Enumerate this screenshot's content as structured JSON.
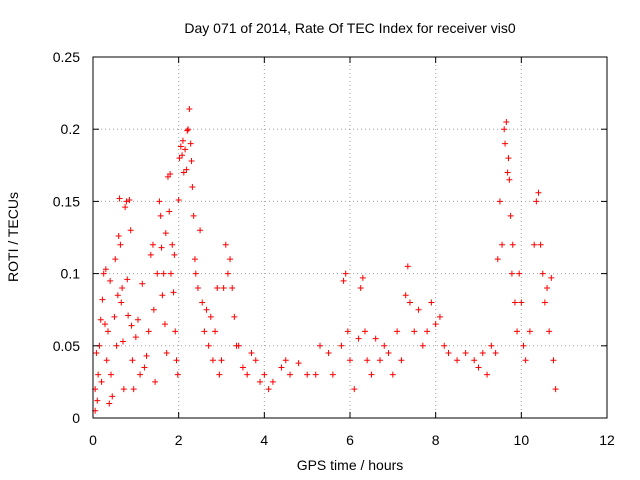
{
  "chart_data": {
    "type": "scatter",
    "title": "Day 071 of 2014, Rate Of TEC Index for receiver vis0",
    "xlabel": "GPS time / hours",
    "ylabel": "ROTI / TECUs",
    "xlim": [
      0,
      12
    ],
    "ylim": [
      0,
      0.25
    ],
    "x_ticks": [
      0,
      2,
      4,
      6,
      8,
      10,
      12
    ],
    "x_tick_labels": [
      "0",
      "2",
      "4",
      "6",
      "8",
      "10",
      "12"
    ],
    "y_ticks": [
      0,
      0.05,
      0.1,
      0.15,
      0.2,
      0.25
    ],
    "y_tick_labels": [
      "0",
      "0.05",
      "0.1",
      "0.15",
      "0.2",
      "0.25"
    ],
    "grid": true,
    "marker": "+",
    "color": "#ff0000",
    "series": [
      {
        "name": "vis0",
        "points": [
          [
            0.05,
            0.005
          ],
          [
            0.05,
            0.02
          ],
          [
            0.08,
            0.045
          ],
          [
            0.1,
            0.012
          ],
          [
            0.12,
            0.03
          ],
          [
            0.15,
            0.05
          ],
          [
            0.18,
            0.068
          ],
          [
            0.2,
            0.025
          ],
          [
            0.22,
            0.082
          ],
          [
            0.25,
            0.1
          ],
          [
            0.28,
            0.065
          ],
          [
            0.3,
            0.103
          ],
          [
            0.32,
            0.04
          ],
          [
            0.35,
            0.06
          ],
          [
            0.38,
            0.01
          ],
          [
            0.4,
            0.095
          ],
          [
            0.42,
            0.03
          ],
          [
            0.45,
            0.015
          ],
          [
            0.5,
            0.07
          ],
          [
            0.52,
            0.11
          ],
          [
            0.55,
            0.05
          ],
          [
            0.58,
            0.085
          ],
          [
            0.6,
            0.126
          ],
          [
            0.62,
            0.152
          ],
          [
            0.64,
            0.12
          ],
          [
            0.66,
            0.08
          ],
          [
            0.68,
            0.09
          ],
          [
            0.7,
            0.053
          ],
          [
            0.72,
            0.02
          ],
          [
            0.75,
            0.146
          ],
          [
            0.78,
            0.15
          ],
          [
            0.8,
            0.096
          ],
          [
            0.82,
            0.071
          ],
          [
            0.85,
            0.151
          ],
          [
            0.88,
            0.13
          ],
          [
            0.9,
            0.064
          ],
          [
            0.92,
            0.04
          ],
          [
            0.95,
            0.02
          ],
          [
            1.0,
            0.056
          ],
          [
            1.05,
            0.068
          ],
          [
            1.1,
            0.03
          ],
          [
            1.15,
            0.093
          ],
          [
            1.2,
            0.035
          ],
          [
            1.25,
            0.043
          ],
          [
            1.3,
            0.06
          ],
          [
            1.35,
            0.113
          ],
          [
            1.4,
            0.12
          ],
          [
            1.42,
            0.075
          ],
          [
            1.45,
            0.025
          ],
          [
            1.5,
            0.1
          ],
          [
            1.55,
            0.15
          ],
          [
            1.58,
            0.14
          ],
          [
            1.6,
            0.118
          ],
          [
            1.62,
            0.085
          ],
          [
            1.65,
            0.1
          ],
          [
            1.68,
            0.065
          ],
          [
            1.7,
            0.128
          ],
          [
            1.72,
            0.045
          ],
          [
            1.75,
            0.167
          ],
          [
            1.78,
            0.143
          ],
          [
            1.8,
            0.169
          ],
          [
            1.82,
            0.1
          ],
          [
            1.85,
            0.12
          ],
          [
            1.88,
            0.087
          ],
          [
            1.9,
            0.113
          ],
          [
            1.92,
            0.06
          ],
          [
            1.95,
            0.04
          ],
          [
            1.98,
            0.03
          ],
          [
            2.0,
            0.151
          ],
          [
            2.02,
            0.18
          ],
          [
            2.05,
            0.188
          ],
          [
            2.08,
            0.182
          ],
          [
            2.1,
            0.192
          ],
          [
            2.12,
            0.17
          ],
          [
            2.15,
            0.186
          ],
          [
            2.18,
            0.172
          ],
          [
            2.2,
            0.199
          ],
          [
            2.22,
            0.2
          ],
          [
            2.25,
            0.214
          ],
          [
            2.28,
            0.19
          ],
          [
            2.3,
            0.178
          ],
          [
            2.32,
            0.16
          ],
          [
            2.35,
            0.14
          ],
          [
            2.38,
            0.11
          ],
          [
            2.4,
            0.1
          ],
          [
            2.45,
            0.09
          ],
          [
            2.5,
            0.13
          ],
          [
            2.55,
            0.08
          ],
          [
            2.6,
            0.06
          ],
          [
            2.65,
            0.075
          ],
          [
            2.7,
            0.05
          ],
          [
            2.75,
            0.07
          ],
          [
            2.8,
            0.04
          ],
          [
            2.85,
            0.06
          ],
          [
            2.9,
            0.09
          ],
          [
            2.95,
            0.03
          ],
          [
            3.0,
            0.04
          ],
          [
            3.05,
            0.09
          ],
          [
            3.1,
            0.12
          ],
          [
            3.15,
            0.1
          ],
          [
            3.2,
            0.11
          ],
          [
            3.25,
            0.09
          ],
          [
            3.3,
            0.07
          ],
          [
            3.35,
            0.05
          ],
          [
            3.4,
            0.05
          ],
          [
            3.5,
            0.035
          ],
          [
            3.6,
            0.03
          ],
          [
            3.7,
            0.045
          ],
          [
            3.8,
            0.04
          ],
          [
            3.9,
            0.025
          ],
          [
            4.0,
            0.03
          ],
          [
            4.1,
            0.02
          ],
          [
            4.2,
            0.025
          ],
          [
            4.4,
            0.035
          ],
          [
            4.5,
            0.04
          ],
          [
            4.6,
            0.03
          ],
          [
            4.8,
            0.038
          ],
          [
            5.0,
            0.03
          ],
          [
            5.2,
            0.03
          ],
          [
            5.3,
            0.05
          ],
          [
            5.5,
            0.045
          ],
          [
            5.6,
            0.03
          ],
          [
            5.8,
            0.05
          ],
          [
            5.85,
            0.095
          ],
          [
            5.9,
            0.1
          ],
          [
            5.95,
            0.06
          ],
          [
            6.0,
            0.04
          ],
          [
            6.1,
            0.02
          ],
          [
            6.2,
            0.055
          ],
          [
            6.25,
            0.09
          ],
          [
            6.3,
            0.097
          ],
          [
            6.35,
            0.06
          ],
          [
            6.4,
            0.04
          ],
          [
            6.5,
            0.03
          ],
          [
            6.6,
            0.055
          ],
          [
            6.7,
            0.04
          ],
          [
            6.8,
            0.05
          ],
          [
            6.9,
            0.045
          ],
          [
            7.0,
            0.03
          ],
          [
            7.1,
            0.06
          ],
          [
            7.2,
            0.04
          ],
          [
            7.3,
            0.085
          ],
          [
            7.35,
            0.105
          ],
          [
            7.4,
            0.08
          ],
          [
            7.5,
            0.06
          ],
          [
            7.6,
            0.075
          ],
          [
            7.7,
            0.05
          ],
          [
            7.8,
            0.06
          ],
          [
            7.9,
            0.08
          ],
          [
            8.0,
            0.065
          ],
          [
            8.1,
            0.07
          ],
          [
            8.2,
            0.05
          ],
          [
            8.3,
            0.045
          ],
          [
            8.5,
            0.04
          ],
          [
            8.7,
            0.045
          ],
          [
            8.9,
            0.04
          ],
          [
            9.0,
            0.035
          ],
          [
            9.1,
            0.045
          ],
          [
            9.2,
            0.03
          ],
          [
            9.3,
            0.05
          ],
          [
            9.4,
            0.045
          ],
          [
            9.45,
            0.11
          ],
          [
            9.5,
            0.15
          ],
          [
            9.55,
            0.12
          ],
          [
            9.6,
            0.2
          ],
          [
            9.62,
            0.19
          ],
          [
            9.65,
            0.205
          ],
          [
            9.68,
            0.17
          ],
          [
            9.7,
            0.18
          ],
          [
            9.72,
            0.165
          ],
          [
            9.75,
            0.14
          ],
          [
            9.78,
            0.1
          ],
          [
            9.8,
            0.12
          ],
          [
            9.85,
            0.08
          ],
          [
            9.9,
            0.06
          ],
          [
            9.95,
            0.1
          ],
          [
            10.0,
            0.08
          ],
          [
            10.05,
            0.05
          ],
          [
            10.1,
            0.04
          ],
          [
            10.2,
            0.06
          ],
          [
            10.3,
            0.12
          ],
          [
            10.35,
            0.15
          ],
          [
            10.4,
            0.156
          ],
          [
            10.45,
            0.12
          ],
          [
            10.5,
            0.1
          ],
          [
            10.55,
            0.08
          ],
          [
            10.6,
            0.09
          ],
          [
            10.65,
            0.06
          ],
          [
            10.7,
            0.097
          ],
          [
            10.75,
            0.04
          ],
          [
            10.8,
            0.02
          ]
        ]
      }
    ]
  }
}
